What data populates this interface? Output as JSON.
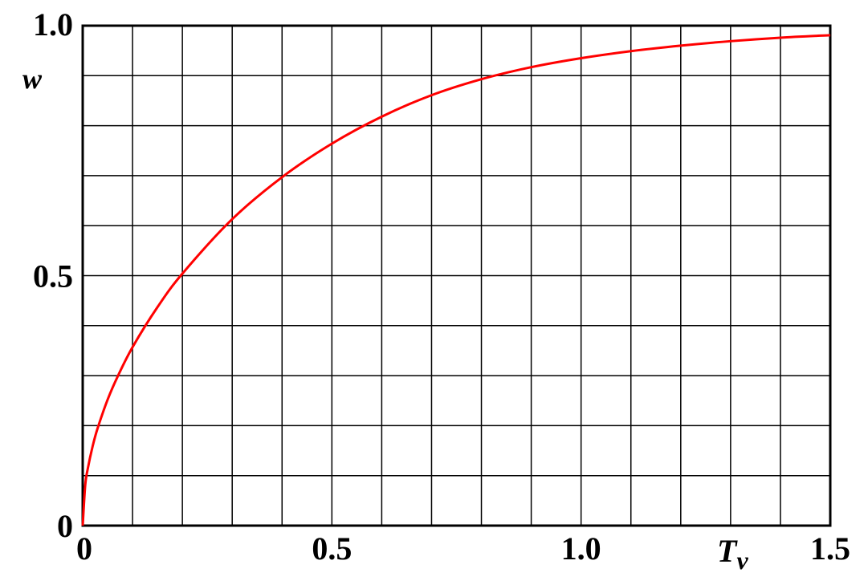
{
  "chart_data": {
    "type": "line",
    "title": "",
    "xlabel": "T",
    "xlabel_subscript": "v",
    "ylabel": "w",
    "xlim": [
      0,
      1.5
    ],
    "ylim": [
      0,
      1.0
    ],
    "x_ticks": [
      {
        "value": 0,
        "label": "0"
      },
      {
        "value": 0.5,
        "label": "0.5"
      },
      {
        "value": 1.0,
        "label": "1.0"
      },
      {
        "value": 1.5,
        "label": "1.5"
      }
    ],
    "y_ticks": [
      {
        "value": 0,
        "label": "0"
      },
      {
        "value": 0.5,
        "label": "0.5"
      },
      {
        "value": 1.0,
        "label": "1.0"
      }
    ],
    "grid": true,
    "x_grid_step": 0.1,
    "y_grid_step": 0.1,
    "legend": "none",
    "series": [
      {
        "color": "#ff0000",
        "x": [
          0,
          0.005,
          0.01,
          0.02,
          0.03,
          0.05,
          0.07,
          0.1,
          0.15,
          0.2,
          0.3,
          0.4,
          0.5,
          0.6,
          0.7,
          0.8,
          0.9,
          1.0,
          1.1,
          1.2,
          1.3,
          1.4,
          1.5
        ],
        "values": [
          0,
          0.08,
          0.113,
          0.159,
          0.195,
          0.252,
          0.298,
          0.357,
          0.437,
          0.504,
          0.613,
          0.697,
          0.764,
          0.818,
          0.861,
          0.893,
          0.917,
          0.935,
          0.949,
          0.96,
          0.969,
          0.976,
          0.981
        ]
      }
    ]
  }
}
